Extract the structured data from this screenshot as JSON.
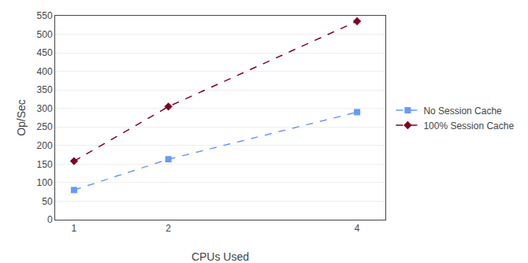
{
  "chart_data": {
    "type": "line",
    "xlabel": "CPUs Used",
    "ylabel": "Op/Sec",
    "x": [
      1,
      2,
      4
    ],
    "series": [
      {
        "name": "No Session Cache",
        "color": "#6699ff",
        "values": [
          80,
          163,
          290
        ],
        "marker": "square",
        "line_style": "dashed"
      },
      {
        "name": "100% Session Cache",
        "color": "#800020",
        "values": [
          158,
          305,
          535
        ],
        "marker": "diamond",
        "line_style": "dashed"
      }
    ],
    "xlim": [
      0.8,
      4.3
    ],
    "ylim": [
      0,
      550
    ],
    "xticks": [
      1,
      2,
      4
    ],
    "yticks": [
      0,
      50,
      100,
      150,
      200,
      250,
      300,
      350,
      400,
      450,
      500,
      550
    ],
    "grid": "y",
    "legend": "right"
  }
}
